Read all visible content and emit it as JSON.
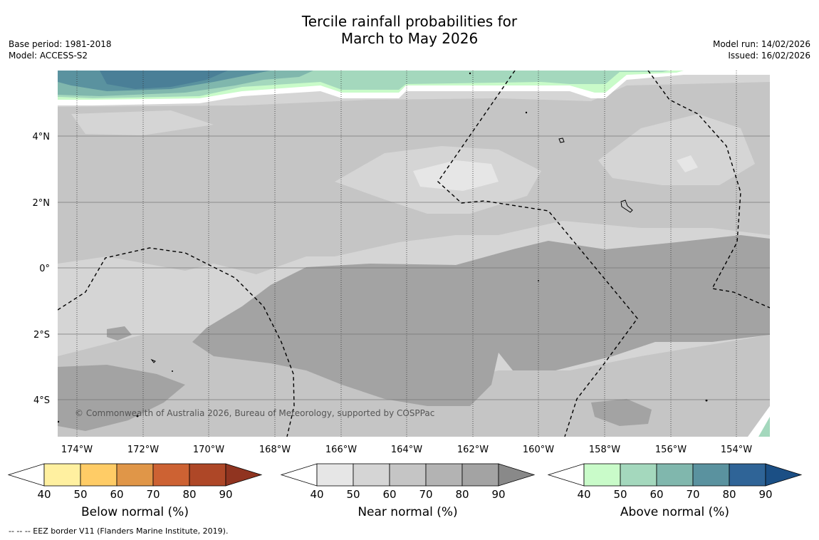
{
  "title_line1": "Tercile rainfall probabilities for",
  "title_line2": "March to May 2026",
  "base_period": "Base period: 1981-2018",
  "model": "Model: ACCESS-S2",
  "model_run": "Model run: 14/02/2026",
  "issued": "Issued: 16/02/2026",
  "copyright": "© Commonwealth of Australia 2026, Bureau of Meteorology, supported by COSPPac",
  "footnote": "--  --  -- EEZ border V11 (Flanders Marine Institute, 2019).",
  "map": {
    "lon_labels": [
      "174°W",
      "172°W",
      "170°W",
      "168°W",
      "166°W",
      "164°W",
      "162°W",
      "160°W",
      "158°W",
      "156°W",
      "154°W"
    ],
    "lat_labels": [
      "4°N",
      "2°N",
      "0°",
      "2°S",
      "4°S"
    ]
  },
  "colorbars": [
    {
      "title": "Below normal (%)",
      "ticks": [
        "40",
        "50",
        "60",
        "70",
        "80",
        "90"
      ],
      "colors": [
        "#ffffff",
        "#fff0a0",
        "#ffcc66",
        "#e09648",
        "#cd6233",
        "#ae4727",
        "#903420"
      ]
    },
    {
      "title": "Near normal (%)",
      "ticks": [
        "40",
        "50",
        "60",
        "70",
        "80",
        "90"
      ],
      "colors": [
        "#ffffff",
        "#e6e6e6",
        "#d5d5d5",
        "#c5c5c5",
        "#b3b3b3",
        "#a3a3a3",
        "#898989"
      ]
    },
    {
      "title": "Above normal (%)",
      "ticks": [
        "40",
        "50",
        "60",
        "70",
        "80",
        "90"
      ],
      "colors": [
        "#ffffff",
        "#c9fbc9",
        "#a4d8bd",
        "#80b7ad",
        "#5a929f",
        "#2f6497",
        "#1b4f85"
      ]
    }
  ]
}
